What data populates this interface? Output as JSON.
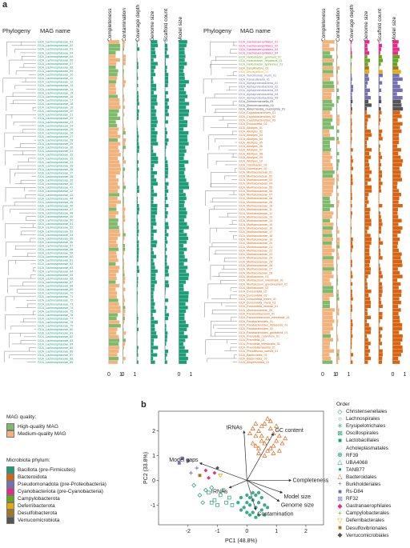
{
  "panel_a": {
    "letter": "a",
    "left": {
      "phylogeny_label": "Phylogeny",
      "mag_label": "MAG name",
      "columns": [
        "Completeness",
        "Contamination",
        "Coverage depth",
        "Genome size",
        "Scaffold count",
        "Model size"
      ],
      "scale_ticks": [
        "0",
        "1",
        "0",
        "1",
        "0",
        "1"
      ],
      "mag_names": [
        "GCA_Lachnospiraceae_01",
        "GCA_Lachnospiraceae_02",
        "GCA_Lachnospiraceae_03",
        "GCA_Lachnospiraceae_04",
        "GCA_Lachnospiraceae_05",
        "GCA_Lachnospiraceae_06",
        "GCA_Lachnospiraceae_07",
        "GCA_Lachnospiraceae_08",
        "GCA_Lachnospiraceae_09",
        "GCA_Lachnospiraceae_10",
        "GCA_Lachnospiraceae_11",
        "GCA_Lachnospiraceae_12",
        "GCA_Lachnospiraceae_13",
        "GCA_Lachnospiraceae_14",
        "GCA_Lachnospiraceae_15",
        "GCA_Lachnospiraceae_16",
        "GCA_Lachnospiraceae_17",
        "GCA_Lachnospiraceae_18",
        "GCA_Lachnospiraceae_19",
        "GCA_Lachnospiraceae_20",
        "GCA_Lachnospiraceae_21",
        "GCA_Lachnospiraceae_22",
        "GCA_Lachnospiraceae_23",
        "GCA_Lachnospiraceae_24",
        "GCA_Lachnospiraceae_25",
        "GCA_Lachnospiraceae_26",
        "GCA_Lachnospiraceae_27",
        "GCA_Lachnospiraceae_28",
        "GCA_Lachnospiraceae_29",
        "GCA_Lachnospiraceae_30",
        "GCA_Lachnospiraceae_31",
        "GCA_Lachnospiraceae_32",
        "GCA_Lachnospiraceae_33",
        "GCA_Lachnospiraceae_34",
        "GCA_Lachnospiraceae_35",
        "GCA_Lachnospiraceae_36",
        "GCA_Lachnospiraceae_37",
        "GCA_Lachnospiraceae_38",
        "GCA_Lachnospiraceae_39",
        "GCA_Lachnospiraceae_40",
        "GCA_Lachnospiraceae_41",
        "GCA_Lachnospiraceae_42",
        "GCA_Lachnospiraceae_43",
        "GCA_Lachnospiraceae_44",
        "GCA_Lachnospiraceae_45",
        "GCA_Lachnospiraceae_46",
        "GCA_Lachnospiraceae_47",
        "GCA_Lachnospiraceae_48",
        "GCA_Lachnospiraceae_49",
        "GCA_Lachnospiraceae_50",
        "GCA_Lachnospiraceae_51",
        "GCA_Lachnospiraceae_52",
        "GCA_Lachnospiraceae_53",
        "GCA_Lachnospiraceae_54",
        "GCA_Lachnospiraceae_55",
        "GCA_Lachnospiraceae_56",
        "GCA_Lachnospiraceae_57",
        "GCA_Lachnospiraceae_58",
        "GCA_Lachnospiraceae_59",
        "GCA_Lachnospiraceae_60",
        "GCA_Lachnospiraceae_61",
        "GCA_Lachnospiraceae_62",
        "GCA_Lachnospiraceae_63",
        "GCA_Lachnospiraceae_64",
        "GCA_Lachnospiraceae_65",
        "GCA_Lachnospiraceae_66",
        "GCA_Lachnospiraceae_67",
        "GCA_Lachnospiraceae_68",
        "GCA_Lachnospiraceae_69",
        "GCA_Lachnospiraceae_70",
        "GCA_Lachnospiraceae_71",
        "GCA_Lachnospiraceae_72",
        "GCA_Lachnospiraceae_73",
        "GCA_Lachnospiraceae_74",
        "GCA_Lachnospiraceae_75",
        "GCA_Lachnospiraceae_76",
        "GCA_Lachnospiraceae_77",
        "GCA_Lachnospiraceae_78",
        "GCA_Lachnospiraceae_79",
        "GCA_Lachnospiraceae_80",
        "GCA_Lachnospiraceae_81",
        "GCA_Lachnospiraceae_82",
        "GCA_Lachnospiraceae_83",
        "GCA_Lachnospiraceae_84",
        "GCA_Lachnospiraceae_85",
        "GCA_Lachnospiraceae_86",
        "GCA_Lachnospiraceae_87",
        "GCA_Lachnospiraceae_88",
        "GCA_Lachnospiraceae_89"
      ]
    },
    "right": {
      "phylogeny_label": "Phylogeny",
      "mag_label": "MAG name",
      "columns": [
        "Completeness",
        "Contamination",
        "Coverage depth",
        "Genome size",
        "Scaffold count",
        "Model size"
      ],
      "scale_ticks": [
        "0",
        "1",
        "0",
        "1",
        "0",
        "1"
      ],
      "mag_names": [
        "GCA_Gastranaerophilales_01",
        "GCA_Gastranaerophilales_02",
        "GCA_Gastranaerophilales_03",
        "GCA_Gastranaerophilales_04",
        "GCA_Helicobacter_ganmani_01",
        "GCA_Helicobacter_hepaticus_01",
        "GCA_Helicobacter_typhlonius_01",
        "GCA_Desulfovibrio_01",
        "GCA_Mucispirillum_01",
        "GCA_Turicimonas_muris_01",
        "GCA_Parasutterella_01",
        "GCA_Alphaproteobacteria_01",
        "GCA_Alphaproteobacteria_02",
        "GCA_Alphaproteobacteria_03",
        "GCA_Alphaproteobacteria_04",
        "GCA_Alphaproteobacteria_05",
        "GCA_Zimmermannella_01",
        "GCA_Zimmermannella_02",
        "GCA_Akkermansia_muciniphila_01",
        "GCA_Cryptobacteroides_01",
        "GCA_Cryptobacteroides_02",
        "GCA_Cryptobacteroides_03",
        "GCA_Duncaniella_01",
        "GCA_Alistipes_01",
        "GCA_Alistipes_02",
        "GCA_Alistipes_03",
        "GCA_Alistipes_04",
        "GCA_Alistipes_05",
        "GCA_Alistipes_06",
        "GCA_Alistipes_07",
        "GCA_Alistipes_08",
        "GCA_Alistipes_09",
        "GCA_Alistipes_10",
        "GCA_Odoribacter_01",
        "GCA_Odoribacter_02",
        "GCA_Muribaculaceae_01",
        "GCA_Muribaculaceae_02",
        "GCA_Muribaculaceae_03",
        "GCA_Muribaculaceae_04",
        "GCA_Muribaculaceae_05",
        "GCA_Muribaculaceae_06",
        "GCA_Muribaculaceae_07",
        "GCA_Muribaculaceae_08",
        "GCA_Muribaculaceae_09",
        "GCA_Muribaculaceae_10",
        "GCA_Muribaculaceae_11",
        "GCA_Muribaculaceae_12",
        "GCA_Muribaculaceae_13",
        "GCA_Muribaculaceae_14",
        "GCA_Muribaculaceae_15",
        "GCA_Muribaculaceae_16",
        "GCA_Muribaculaceae_17",
        "GCA_Muribaculaceae_18",
        "GCA_Muribaculaceae_19",
        "GCA_Muribaculaceae_20",
        "GCA_Muribaculaceae_21",
        "GCA_Muribaculaceae_22",
        "GCA_Muribaculaceae_23",
        "GCA_Muribaculaceae_24",
        "GCA_Muribaculaceae_25",
        "GCA_Muribaculaceae_26",
        "GCA_Muribaculaceae_27",
        "GCA_Muribaculaceae_28",
        "GCA_Muribaculum_01",
        "GCA_Muribaculum_intestinale_01",
        "GCA_Muribaculum_gordoncarteri_01",
        "GCA_Muribaculum_02",
        "GCA_Duncaniella_02",
        "GCA_Duncaniella_03",
        "GCA_Duncaniella_freteri_01",
        "GCA_Duncaniella_muris_01",
        "GCA_Duncaniella_dubosii_01",
        "GCA_Muribaculaceae_29",
        "GCA_Paramuribaculum_01",
        "GCA_Paramuribaculum_intestinale_01",
        "GCA_Parabacteroides_01",
        "GCA_Parabacteroides_distasonis_01",
        "GCA_Parabacteroides_02",
        "GCA_Parabacteroides_goldsteinii_01",
        "GCA_Prevotella_rodentium_01",
        "GCA_Prevotella_01",
        "GCA_Prevotella_intestinalis_01",
        "GCA_Prevotellamassilia_01",
        "GCA_Phocaeicola_sartorii_01",
        "GCA_Bacteroides_01",
        "GCA_Bacteroides_02",
        "GCA_Alloprevotella_01"
      ]
    }
  },
  "legends": {
    "mag_quality_title": "MAG quality:",
    "mag_quality": [
      {
        "label": "High-quality MAG",
        "color": "#7dbb6a"
      },
      {
        "label": "Medium-quality MAG",
        "color": "#f2b27a"
      }
    ],
    "phylum_title": "Microbiota phylum:",
    "phylum": [
      {
        "label": "Bacillota (pre-Firmicutes)",
        "color": "#1a9e77"
      },
      {
        "label": "Bacteroidota",
        "color": "#d9640f"
      },
      {
        "label": "Pseudomonadota (pre-Proteobacteria)",
        "color": "#7570b3"
      },
      {
        "label": "Cyanobacteriota (pre-Cyanobacteria)",
        "color": "#e7298a"
      },
      {
        "label": "Campylobacterota",
        "color": "#66a61e"
      },
      {
        "label": "Deferribacterota",
        "color": "#e6ab02"
      },
      {
        "label": "Desulfobacterota",
        "color": "#a6761d"
      },
      {
        "label": "Verrucomicrobiota",
        "color": "#555555"
      }
    ]
  },
  "panel_b": {
    "letter": "b",
    "order_title": "Order",
    "orders": [
      {
        "label": "Christensenellales",
        "symbol": "◇",
        "color": "#1a9e77"
      },
      {
        "label": "Lachnospirales",
        "symbol": "○",
        "color": "#1a9e77"
      },
      {
        "label": "Erysipelotrichales",
        "symbol": "✳",
        "color": "#1a9e77"
      },
      {
        "label": "Oscillospirales",
        "symbol": "⊠",
        "color": "#1a9e77"
      },
      {
        "label": "Lactobacillales",
        "symbol": "■",
        "color": "#1a9e77"
      },
      {
        "label": "Acholeplasmatales",
        "symbol": "◌",
        "color": "#1a9e77"
      },
      {
        "label": "RF39",
        "symbol": "⊕",
        "color": "#1a9e77"
      },
      {
        "label": "UBA4068",
        "symbol": "△",
        "color": "#1a9e77"
      },
      {
        "label": "TANB77",
        "symbol": "●",
        "color": "#1a9e77"
      },
      {
        "label": "Bacteroidales",
        "symbol": "△",
        "color": "#d9640f"
      },
      {
        "label": "Burkholderiales",
        "symbol": "+",
        "color": "#7570b3"
      },
      {
        "label": "Rs-D84",
        "symbol": "■",
        "color": "#7570b3"
      },
      {
        "label": "RF32",
        "symbol": "⊠",
        "color": "#7570b3"
      },
      {
        "label": "Gastranaerophilales",
        "symbol": "◆",
        "color": "#e7298a"
      },
      {
        "label": "Campylobacterales",
        "symbol": "+",
        "color": "#66a61e"
      },
      {
        "label": "Deferribacterales",
        "symbol": "▽",
        "color": "#e6ab02"
      },
      {
        "label": "Desulfovibrionales",
        "symbol": "■",
        "color": "#a6761d"
      },
      {
        "label": "Verrucomicrobiales",
        "symbol": "◆",
        "color": "#555555"
      }
    ],
    "chart_data": {
      "type": "scatter",
      "xlabel": "PC1 (48.8%)",
      "ylabel": "PC2 (33.8%)",
      "xlim": [
        -3,
        2.6
      ],
      "ylim": [
        -1.8,
        2.8
      ],
      "x_ticks": [
        -2,
        -1,
        0,
        1,
        2
      ],
      "y_ticks": [
        -1,
        0,
        1,
        2
      ],
      "arrows": [
        {
          "label": "tRNAs",
          "x": -0.1,
          "y": 2.0
        },
        {
          "label": "GC content",
          "x": 0.9,
          "y": 1.9
        },
        {
          "label": "Model gaps",
          "x": -1.6,
          "y": 0.7
        },
        {
          "label": "rRNAs",
          "x": -0.6,
          "y": -0.3
        },
        {
          "label": "Completeness",
          "x": 1.5,
          "y": 0.0
        },
        {
          "label": "Model size",
          "x": 1.2,
          "y": -0.5
        },
        {
          "label": "Genome size",
          "x": 1.1,
          "y": -0.85
        },
        {
          "label": "Contamination",
          "x": 0.3,
          "y": -1.2
        }
      ],
      "groups": [
        {
          "name": "Bacteroidales",
          "color": "#d9640f",
          "symbol": "triangle",
          "points": [
            [
              0.6,
              2.3
            ],
            [
              0.8,
              2.1
            ],
            [
              0.4,
              2.0
            ],
            [
              0.9,
              1.9
            ],
            [
              0.7,
              1.7
            ],
            [
              1.0,
              1.6
            ],
            [
              0.5,
              1.6
            ],
            [
              0.3,
              1.8
            ],
            [
              0.6,
              1.5
            ],
            [
              1.1,
              1.8
            ],
            [
              0.8,
              2.4
            ],
            [
              0.2,
              1.5
            ],
            [
              0.9,
              1.4
            ],
            [
              0.4,
              1.3
            ],
            [
              0.7,
              1.2
            ],
            [
              0.5,
              2.2
            ],
            [
              1.2,
              1.5
            ],
            [
              0.3,
              2.3
            ],
            [
              0.6,
              1.0
            ],
            [
              0.9,
              1.1
            ],
            [
              0.1,
              1.9
            ],
            [
              1.0,
              2.2
            ],
            [
              0.4,
              1.1
            ],
            [
              0.8,
              1.3
            ],
            [
              1.3,
              1.7
            ],
            [
              0.2,
              2.1
            ],
            [
              0.7,
              2.5
            ],
            [
              0.5,
              1.8
            ],
            [
              1.1,
              1.2
            ],
            [
              0.3,
              1.4
            ]
          ]
        },
        {
          "name": "Lachnospirales",
          "color": "#1a9e77",
          "symbol": "circle",
          "points": [
            [
              0.0,
              -0.6
            ],
            [
              0.2,
              -0.8
            ],
            [
              0.1,
              -1.0
            ],
            [
              -0.2,
              -0.7
            ],
            [
              0.3,
              -1.1
            ],
            [
              0.4,
              -0.9
            ],
            [
              0.2,
              -1.3
            ],
            [
              0.5,
              -1.2
            ],
            [
              -0.1,
              -1.1
            ],
            [
              0.0,
              -0.9
            ],
            [
              0.3,
              -0.6
            ],
            [
              0.6,
              -1.0
            ],
            [
              0.1,
              -1.4
            ],
            [
              0.4,
              -1.4
            ],
            [
              -0.3,
              -0.9
            ],
            [
              0.2,
              -0.5
            ],
            [
              0.5,
              -0.7
            ],
            [
              0.7,
              -1.1
            ],
            [
              0.0,
              -1.3
            ],
            [
              0.3,
              -1.5
            ],
            [
              -0.2,
              -1.2
            ],
            [
              0.6,
              -1.4
            ],
            [
              0.1,
              -0.7
            ],
            [
              0.4,
              -0.5
            ]
          ]
        },
        {
          "name": "Oscillospirales",
          "color": "#1a9e77",
          "symbol": "square-x",
          "points": [
            [
              -0.9,
              -0.6
            ],
            [
              -1.1,
              -0.8
            ],
            [
              -0.7,
              -0.9
            ],
            [
              -1.3,
              -0.5
            ],
            [
              -0.8,
              -0.4
            ],
            [
              -1.0,
              -1.0
            ],
            [
              -0.6,
              -0.7
            ],
            [
              -1.2,
              -0.9
            ],
            [
              -0.5,
              -1.0
            ]
          ]
        },
        {
          "name": "Christensenellales",
          "color": "#1a9e77",
          "symbol": "diamond",
          "points": [
            [
              -1.6,
              -0.6
            ],
            [
              -1.4,
              -0.4
            ],
            [
              -1.8,
              -0.2
            ],
            [
              -1.5,
              -0.9
            ],
            [
              -1.2,
              -0.3
            ]
          ]
        },
        {
          "name": "Rs-D84",
          "color": "#7570b3",
          "symbol": "square",
          "points": [
            [
              -2.2,
              0.9
            ],
            [
              -2.3,
              0.7
            ],
            [
              -2.0,
              0.8
            ]
          ]
        },
        {
          "name": "Gastranaerophilales",
          "color": "#e7298a",
          "symbol": "diamond-filled",
          "points": [
            [
              -1.3,
              0.1
            ],
            [
              -1.1,
              0.3
            ],
            [
              -1.4,
              0.4
            ]
          ]
        },
        {
          "name": "Burkholderiales",
          "color": "#7570b3",
          "symbol": "plus",
          "points": [
            [
              -1.7,
              0.5
            ],
            [
              -1.9,
              0.3
            ]
          ]
        },
        {
          "name": "Deferribacterales",
          "color": "#e6ab02",
          "symbol": "triangle-down",
          "points": [
            [
              -0.9,
              0.2
            ]
          ]
        },
        {
          "name": "Desulfovibrionales",
          "color": "#a6761d",
          "symbol": "square",
          "points": [
            [
              -1.6,
              0.2
            ]
          ]
        },
        {
          "name": "Verrucomicrobiales",
          "color": "#555555",
          "symbol": "diamond-filled",
          "points": [
            [
              -1.0,
              0.5
            ]
          ]
        }
      ]
    }
  }
}
